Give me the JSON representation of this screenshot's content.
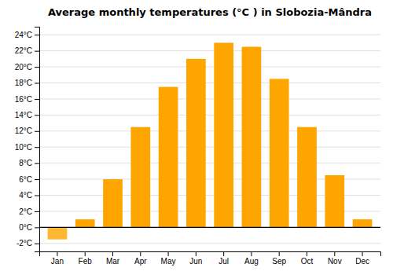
{
  "chart_data": {
    "type": "bar",
    "title": "Average monthly temperatures (°C ) in Slobozia-Mândra",
    "categories": [
      "Jan",
      "Feb",
      "Mar",
      "Apr",
      "May",
      "Jun",
      "Jul",
      "Aug",
      "Sep",
      "Oct",
      "Nov",
      "Dec"
    ],
    "values": [
      -1.5,
      1.0,
      6.0,
      12.5,
      17.5,
      21.0,
      23.0,
      22.5,
      18.5,
      12.5,
      6.5,
      1.0
    ],
    "colors": [
      "#FFB733",
      "#FFA500",
      "#FFA500",
      "#FFA500",
      "#FFA500",
      "#FFA500",
      "#FFA500",
      "#FFA500",
      "#FFA500",
      "#FFA500",
      "#FFA500",
      "#FFA500"
    ],
    "ylim": [
      -3,
      25
    ],
    "yticks": [
      {
        "value": -2,
        "label": "-2°C"
      },
      {
        "value": 0,
        "label": "0°C"
      },
      {
        "value": 2,
        "label": "2°C"
      },
      {
        "value": 4,
        "label": "4°C"
      },
      {
        "value": 6,
        "label": "6°C"
      },
      {
        "value": 8,
        "label": "8°C"
      },
      {
        "value": 10,
        "label": "10°C"
      },
      {
        "value": 12,
        "label": "12°C"
      },
      {
        "value": 14,
        "label": "14°C"
      },
      {
        "value": 16,
        "label": "16°C"
      },
      {
        "value": 18,
        "label": "18°C"
      },
      {
        "value": 20,
        "label": "20°C"
      },
      {
        "value": 22,
        "label": "22°C"
      },
      {
        "value": 24,
        "label": "24°C"
      }
    ],
    "grid": true
  }
}
